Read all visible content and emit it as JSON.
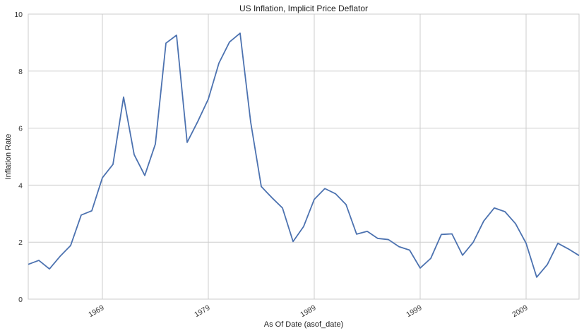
{
  "chart_data": {
    "type": "line",
    "title": "US Inflation, Implicit Price Deflator",
    "xlabel": "As Of Date (asof_date)",
    "ylabel": "Inflation Rate",
    "x_start_year": 1962,
    "x_end_year": 2014,
    "ylim": [
      0,
      10
    ],
    "x_ticks": [
      "1969",
      "1979",
      "1989",
      "1999",
      "2009"
    ],
    "y_ticks": [
      "0",
      "2",
      "4",
      "6",
      "8",
      "10"
    ],
    "grid": true,
    "series": [
      {
        "color": "#4c72b0",
        "x": [
          1962,
          1963,
          1964,
          1965,
          1966,
          1967,
          1968,
          1969,
          1970,
          1971,
          1972,
          1973,
          1974,
          1975,
          1976,
          1977,
          1978,
          1979,
          1980,
          1981,
          1982,
          1983,
          1984,
          1985,
          1986,
          1987,
          1988,
          1989,
          1990,
          1991,
          1992,
          1993,
          1994,
          1995,
          1996,
          1997,
          1998,
          1999,
          2000,
          2001,
          2002,
          2003,
          2004,
          2005,
          2006,
          2007,
          2008,
          2009,
          2010,
          2011,
          2012,
          2013,
          2014
        ],
        "values": [
          1.22,
          1.36,
          1.06,
          1.5,
          1.88,
          2.95,
          3.1,
          4.26,
          4.73,
          7.09,
          5.07,
          4.34,
          5.44,
          8.98,
          9.26,
          5.5,
          6.23,
          7.02,
          8.28,
          9.02,
          9.33,
          6.21,
          3.95,
          3.56,
          3.2,
          2.02,
          2.55,
          3.5,
          3.88,
          3.7,
          3.32,
          2.28,
          2.38,
          2.13,
          2.09,
          1.84,
          1.72,
          1.09,
          1.43,
          2.27,
          2.29,
          1.54,
          1.99,
          2.74,
          3.2,
          3.07,
          2.65,
          1.96,
          0.77,
          1.21,
          1.96,
          1.76,
          1.53
        ]
      }
    ]
  }
}
